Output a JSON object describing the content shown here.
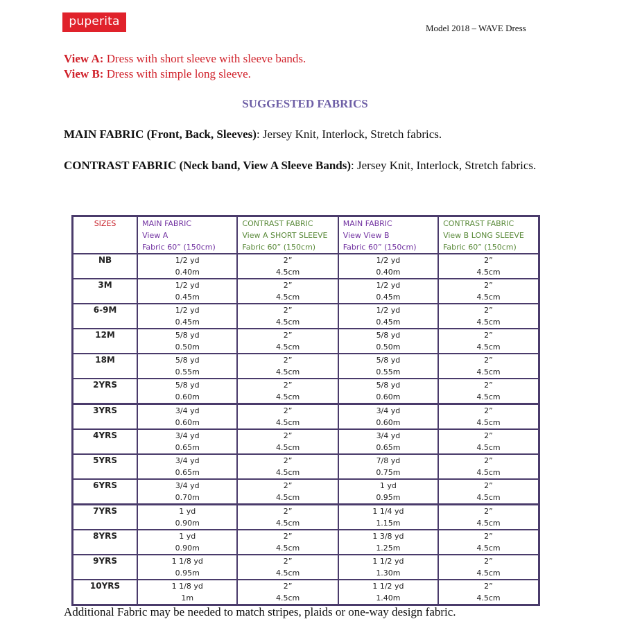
{
  "header": {
    "logo_text": "puperita",
    "model": "Model 2018 – WAVE Dress",
    "brand_color": "#e0222b"
  },
  "views": [
    {
      "label": "View A:",
      "text": " Dress with short sleeve with sleeve bands."
    },
    {
      "label": "View B:",
      "text": " Dress with simple long sleeve."
    }
  ],
  "suggested_heading": "SUGGESTED FABRICS",
  "main_fabric": {
    "label": "MAIN FABRIC (Front, Back, Sleeves)",
    "text": ": Jersey Knit, Interlock, Stretch fabrics."
  },
  "contrast_fabric": {
    "label": "CONTRAST FABRIC (Neck band, View A Sleeve Bands)",
    "text": ": Jersey Knit, Interlock, Stretch fabrics."
  },
  "table": {
    "headers": [
      [
        "SIZES"
      ],
      [
        "MAIN FABRIC",
        "View A",
        "Fabric 60” (150cm)"
      ],
      [
        "CONTRAST FABRIC",
        "View A SHORT SLEEVE",
        "Fabric 60” (150cm)"
      ],
      [
        "MAIN FABRIC",
        "View View B",
        "Fabric 60” (150cm)"
      ],
      [
        "CONTRAST FABRIC",
        "View B LONG SLEEVE",
        "Fabric 60” (150cm)"
      ]
    ],
    "rows": [
      [
        "NB",
        "1/2 yd",
        "0.40m",
        "2”",
        "4.5cm",
        "1/2 yd",
        "0.40m",
        "2”",
        "4.5cm"
      ],
      [
        "3M",
        "1/2 yd",
        "0.45m",
        "2”",
        "4.5cm",
        "1/2 yd",
        "0.45m",
        "2”",
        "4.5cm"
      ],
      [
        "6-9M",
        "1/2 yd",
        "0.45m",
        "2”",
        "4.5cm",
        "1/2 yd",
        "0.45m",
        "2”",
        "4.5cm"
      ],
      [
        "12M",
        "5/8 yd",
        "0.50m",
        "2”",
        "4.5cm",
        "5/8 yd",
        "0.50m",
        "2”",
        "4.5cm"
      ],
      [
        "18M",
        "5/8 yd",
        "0.55m",
        "2”",
        "4.5cm",
        "5/8 yd",
        "0.55m",
        "2”",
        "4.5cm"
      ],
      [
        "2YRS",
        "5/8 yd",
        "0.60m",
        "2”",
        "4.5cm",
        "5/8 yd",
        "0.60m",
        "2”",
        "4.5cm"
      ],
      [
        "3YRS",
        "3/4 yd",
        "0.60m",
        "2”",
        "4.5cm",
        "3/4 yd",
        "0.60m",
        "2”",
        "4.5cm"
      ],
      [
        "4YRS",
        "3/4 yd",
        "0.65m",
        "2”",
        "4.5cm",
        "3/4 yd",
        "0.65m",
        "2”",
        "4.5cm"
      ],
      [
        "5YRS",
        "3/4 yd",
        "0.65m",
        "2”",
        "4.5cm",
        "7/8 yd",
        "0.75m",
        "2”",
        "4.5cm"
      ],
      [
        "6YRS",
        "3/4 yd",
        "0.70m",
        "2”",
        "4.5cm",
        "1 yd",
        "0.95m",
        "2”",
        "4.5cm"
      ],
      [
        "7YRS",
        "1 yd",
        "0.90m",
        "2”",
        "4.5cm",
        "1 1/4 yd",
        "1.15m",
        "2”",
        "4.5cm"
      ],
      [
        "8YRS",
        "1 yd",
        "0.90m",
        "2”",
        "4.5cm",
        "1 3/8 yd",
        "1.25m",
        "2”",
        "4.5cm"
      ],
      [
        "9YRS",
        "1 1/8 yd",
        "0.95m",
        "2”",
        "4.5cm",
        "1 1/2 yd",
        "1.30m",
        "2”",
        "4.5cm"
      ],
      [
        "10YRS",
        "1 1/8 yd",
        "1m",
        "2”",
        "4.5cm",
        "1 1/2 yd",
        "1.40m",
        "2”",
        "4.5cm"
      ]
    ]
  },
  "footer": "Additional Fabric may be needed to match stripes, plaids or one-way design fabric."
}
